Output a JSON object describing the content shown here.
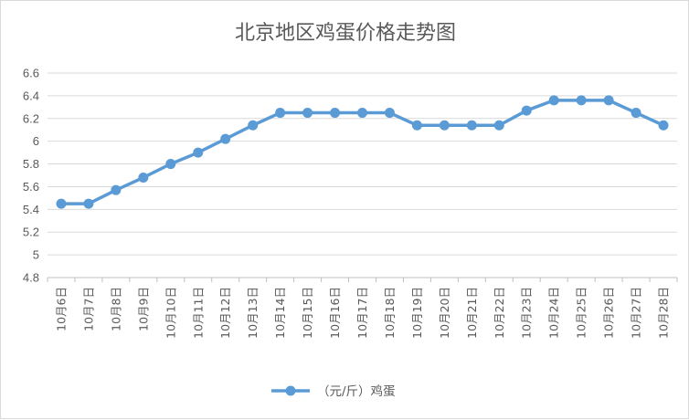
{
  "chart_data": {
    "type": "line",
    "title": "北京地区鸡蛋价格走势图",
    "categories": [
      "10月6日",
      "10月7日",
      "10月8日",
      "10月9日",
      "10月10日",
      "10月11日",
      "10月12日",
      "10月13日",
      "10月14日",
      "10月15日",
      "10月16日",
      "10月17日",
      "10月18日",
      "10月19日",
      "10月20日",
      "10月21日",
      "10月22日",
      "10月23日",
      "10月24日",
      "10月25日",
      "10月26日",
      "10月27日",
      "10月28日"
    ],
    "series": [
      {
        "name": "（元/斤）鸡蛋",
        "color": "#5b9bd5",
        "values": [
          5.45,
          5.45,
          5.57,
          5.68,
          5.8,
          5.9,
          6.02,
          6.14,
          6.25,
          6.25,
          6.25,
          6.25,
          6.25,
          6.14,
          6.14,
          6.14,
          6.14,
          6.27,
          6.36,
          6.36,
          6.36,
          6.25,
          6.14
        ]
      }
    ],
    "ylim": [
      4.8,
      6.6
    ],
    "yticks": [
      "6.6",
      "6.4",
      "6.2",
      "6",
      "5.8",
      "5.6",
      "5.4",
      "5.2",
      "5",
      "4.8"
    ],
    "xlabel": "",
    "ylabel": "",
    "grid": true,
    "legend_position": "bottom"
  }
}
